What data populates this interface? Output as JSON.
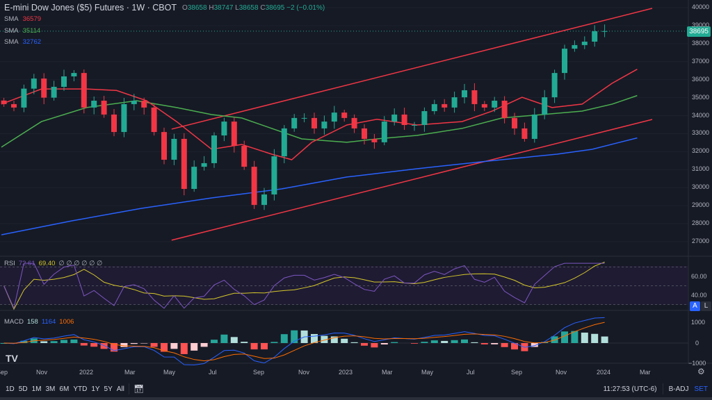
{
  "header": {
    "title": "E-mini Dow Jones ($5) Futures · 1W · CBOT",
    "o_label": "O",
    "o": "38658",
    "h_label": "H",
    "h": "38747",
    "l_label": "L",
    "l": "38658",
    "c_label": "C",
    "c": "38695",
    "change": "−2 (−0.01%)"
  },
  "smas": [
    {
      "label": "SMA",
      "value": "36579",
      "color": "#f23645"
    },
    {
      "label": "SMA",
      "value": "35114",
      "color": "#4caf50"
    },
    {
      "label": "SMA",
      "value": "32762",
      "color": "#2962ff"
    }
  ],
  "current_price": "38695",
  "price_axis": [
    "40000",
    "39000",
    "38000",
    "37000",
    "36000",
    "35000",
    "34000",
    "33000",
    "32000",
    "31000",
    "30000",
    "29000",
    "28000",
    "27000"
  ],
  "rsi": {
    "label": "RSI",
    "value": "72.61",
    "ma": "69.40",
    "extra": "∅ ∅ ∅ ∅ ∅ ∅",
    "axis": [
      "60.00",
      "40.00"
    ],
    "btn_a": "A",
    "btn_l": "L"
  },
  "macd": {
    "label": "MACD",
    "hist": "158",
    "macd": "1164",
    "signal": "1006",
    "axis": [
      "1000",
      "0",
      "−1000"
    ]
  },
  "time_axis": [
    "Sep",
    "Nov",
    "2022",
    "Mar",
    "May",
    "Jul",
    "Sep",
    "Nov",
    "2023",
    "Mar",
    "May",
    "Jul",
    "Sep",
    "Nov",
    "2024",
    "Mar"
  ],
  "toolbar": {
    "ranges": [
      "1D",
      "5D",
      "1M",
      "3M",
      "6M",
      "YTD",
      "1Y",
      "5Y",
      "All"
    ],
    "time": "11:27:53 (UTC-6)",
    "badj": "B-ADJ",
    "set": "SET"
  },
  "colors": {
    "up": "#22ab94",
    "down": "#f23645",
    "sma1": "#f23645",
    "sma2": "#4caf50",
    "sma3": "#2962ff",
    "rsi": "#7e57c2",
    "rsima": "#d6c82a",
    "macd": "#2962ff",
    "signal": "#ff6d00"
  },
  "chart_data": {
    "type": "candlestick",
    "interval_weeks": 2,
    "closes": [
      34640,
      34450,
      35500,
      36060,
      35000,
      35600,
      36180,
      36370,
      34450,
      34830,
      34060,
      33090,
      34640,
      34830,
      34450,
      33090,
      31550,
      32710,
      29930,
      31160,
      31360,
      32900,
      33670,
      32320,
      31160,
      29040,
      29620,
      31740,
      33290,
      33870,
      33870,
      33290,
      33670,
      34170,
      33870,
      33290,
      32710,
      32520,
      33670,
      34060,
      33480,
      33480,
      34250,
      34640,
      34450,
      35020,
      35410,
      34640,
      34450,
      34830,
      33870,
      33290,
      32710,
      34060,
      35020,
      36370,
      37720,
      37920,
      38110,
      38690,
      38695
    ],
    "sma_red": [
      [
        0,
        34640
      ],
      [
        8,
        35480
      ],
      [
        17,
        35480
      ],
      [
        23,
        35400
      ],
      [
        29,
        34830
      ],
      [
        35,
        33670
      ],
      [
        42,
        32130
      ],
      [
        48,
        32400
      ],
      [
        54,
        31860
      ],
      [
        58,
        31550
      ],
      [
        62,
        32520
      ],
      [
        69,
        33480
      ],
      [
        75,
        33800
      ],
      [
        83,
        33480
      ],
      [
        92,
        33670
      ],
      [
        98,
        34250
      ],
      [
        104,
        35020
      ],
      [
        110,
        34450
      ],
      [
        116,
        34640
      ],
      [
        122,
        35800
      ],
      [
        127,
        36579
      ]
    ],
    "sma_green": [
      [
        0,
        32250
      ],
      [
        8,
        33670
      ],
      [
        17,
        34450
      ],
      [
        27,
        34830
      ],
      [
        35,
        34450
      ],
      [
        42,
        34060
      ],
      [
        48,
        33870
      ],
      [
        54,
        33290
      ],
      [
        60,
        32710
      ],
      [
        69,
        32520
      ],
      [
        75,
        32710
      ],
      [
        83,
        32900
      ],
      [
        92,
        33290
      ],
      [
        100,
        33870
      ],
      [
        108,
        34060
      ],
      [
        116,
        34250
      ],
      [
        122,
        34640
      ],
      [
        127,
        35114
      ]
    ],
    "sma_blue": [
      [
        0,
        27380
      ],
      [
        14,
        28150
      ],
      [
        28,
        28850
      ],
      [
        42,
        29430
      ],
      [
        56,
        29930
      ],
      [
        69,
        30590
      ],
      [
        83,
        31050
      ],
      [
        97,
        31470
      ],
      [
        111,
        31860
      ],
      [
        118,
        32130
      ],
      [
        127,
        32762
      ]
    ],
    "channel_upper": [
      [
        34,
        33250
      ],
      [
        130,
        39960
      ]
    ],
    "channel_lower": [
      [
        34,
        27080
      ],
      [
        130,
        33790
      ]
    ]
  }
}
